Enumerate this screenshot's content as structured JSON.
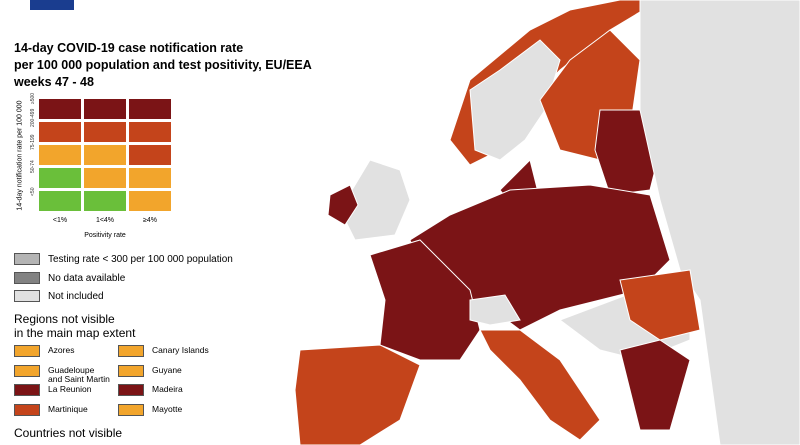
{
  "header": {
    "title_lines": [
      "14-day COVID-19 case notification rate",
      "per 100 000 population and test positivity, EU/EEA",
      "weeks 47 - 48"
    ]
  },
  "matrix": {
    "y_label": "14-day notification rate per 100 000",
    "x_label": "Positivity rate",
    "rows": [
      {
        "label": "≥500",
        "colors": [
          "#7b1416",
          "#7b1416",
          "#7b1416"
        ]
      },
      {
        "label": "200-499",
        "colors": [
          "#c4441b",
          "#c4441b",
          "#c4441b"
        ]
      },
      {
        "label": "75-199",
        "colors": [
          "#f2a52c",
          "#f2a52c",
          "#c4441b"
        ]
      },
      {
        "label": "50-74",
        "colors": [
          "#6abf3a",
          "#f2a52c",
          "#f2a52c"
        ]
      },
      {
        "label": "<50",
        "colors": [
          "#6abf3a",
          "#6abf3a",
          "#f2a52c"
        ]
      }
    ],
    "columns": [
      "<1%",
      "1<4%",
      "≥4%"
    ]
  },
  "legend": [
    {
      "label": "Testing rate < 300 per 100 000 population",
      "color": "#b4b4b4"
    },
    {
      "label": "No data available",
      "color": "#828282"
    },
    {
      "label": "Not included",
      "color": "#e1e1e1"
    }
  ],
  "regions": {
    "heading_lines": [
      "Regions not visible",
      "in the main map extent"
    ],
    "items": [
      {
        "label": "Azores",
        "color": "#f2a52c"
      },
      {
        "label": "Canary Islands",
        "color": "#f2a52c"
      },
      {
        "label": "Guadeloupe and Saint Martin",
        "color": "#f2a52c"
      },
      {
        "label": "Guyane",
        "color": "#f2a52c"
      },
      {
        "label": "La Reunion",
        "color": "#7b1416"
      },
      {
        "label": "Madeira",
        "color": "#7b1416"
      },
      {
        "label": "Martinique",
        "color": "#c4441b"
      },
      {
        "label": "Mayotte",
        "color": "#f2a52c"
      }
    ]
  },
  "countries": {
    "heading": "Countries not visible"
  }
}
